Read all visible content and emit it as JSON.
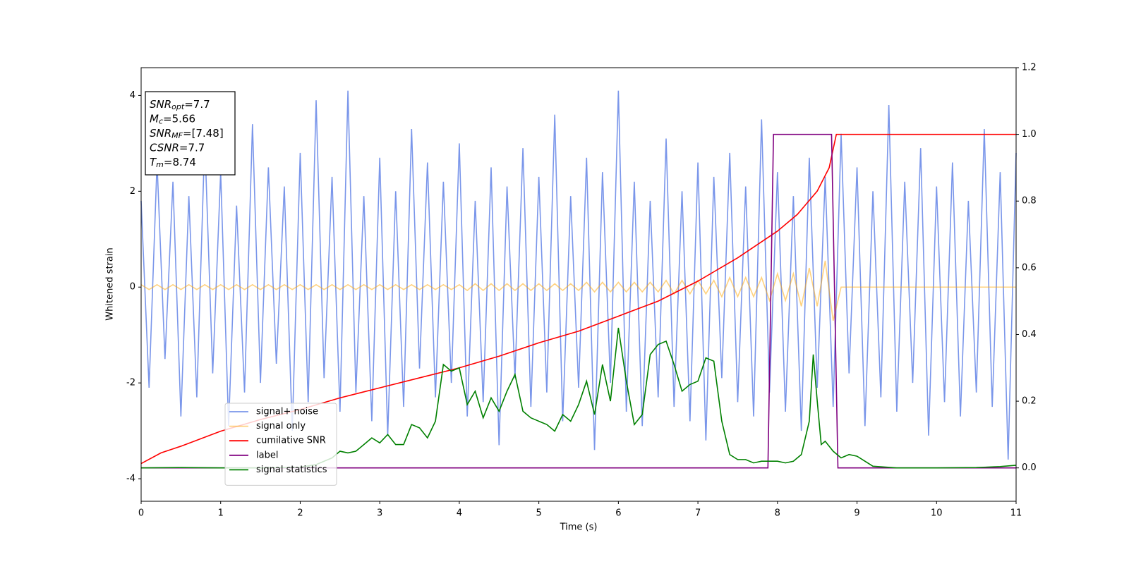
{
  "chart_data": {
    "type": "line",
    "x_label": "Time (s)",
    "y_label": "Whitened strain",
    "xlim": [
      0,
      11
    ],
    "ylim": [
      -4.47,
      4.58
    ],
    "y2lim": [
      -0.1,
      1.2
    ],
    "xticks": [
      0,
      1,
      2,
      3,
      4,
      5,
      6,
      7,
      8,
      9,
      10,
      11
    ],
    "yticks": [
      -4,
      -2,
      0,
      2,
      4
    ],
    "y2ticks": [
      {
        "value": 0,
        "label": "0.0"
      },
      0.2,
      0.4,
      0.6,
      0.8,
      {
        "value": 1,
        "label": "1.0"
      },
      1.2
    ],
    "annotation_lines": [
      {
        "main": "SNR",
        "sub": "opt",
        "rest": "=7.7"
      },
      {
        "main": "M",
        "sub": "c",
        "rest": "=5.66"
      },
      {
        "main": "SNR",
        "sub": "MF",
        "rest": "=[7.48]"
      },
      {
        "main": "CSNR",
        "rest": "=7.7"
      },
      {
        "main": "T",
        "sub": "m",
        "rest": "=8.74"
      }
    ],
    "x": [
      0,
      0.1,
      0.2,
      0.3,
      0.4,
      0.5,
      0.6,
      0.7,
      0.8,
      0.9,
      1,
      1.1,
      1.2,
      1.3,
      1.4,
      1.5,
      1.6,
      1.7,
      1.8,
      1.9,
      2,
      2.1,
      2.2,
      2.3,
      2.4,
      2.5,
      2.6,
      2.7,
      2.8,
      2.9,
      3,
      3.1,
      3.2,
      3.3,
      3.4,
      3.5,
      3.6,
      3.7,
      3.8,
      3.9,
      4,
      4.1,
      4.2,
      4.3,
      4.4,
      4.5,
      4.6,
      4.7,
      4.8,
      4.9,
      5,
      5.1,
      5.2,
      5.3,
      5.4,
      5.5,
      5.6,
      5.7,
      5.8,
      5.9,
      6,
      6.1,
      6.2,
      6.3,
      6.4,
      6.5,
      6.6,
      6.7,
      6.8,
      6.9,
      7,
      7.1,
      7.2,
      7.3,
      7.4,
      7.5,
      7.6,
      7.7,
      7.8,
      7.9,
      8,
      8.1,
      8.2,
      8.3,
      8.4,
      8.5,
      8.6,
      8.7,
      8.8,
      8.9,
      9,
      9.1,
      9.2,
      9.3,
      9.4,
      9.5,
      9.6,
      9.7,
      9.8,
      9.9,
      10,
      10.1,
      10.2,
      10.3,
      10.4,
      10.5,
      10.6,
      10.7,
      10.8,
      10.9,
      11
    ],
    "series": [
      {
        "name": "signal+ noise",
        "color": "royalblue",
        "alpha": 0.7,
        "values": [
          1.8,
          -2.1,
          2.6,
          -1.5,
          2.2,
          -2.7,
          1.9,
          -2.3,
          3.1,
          -1.8,
          2.4,
          -2.9,
          1.7,
          -2.2,
          3.4,
          -2.0,
          2.5,
          -1.6,
          2.1,
          -3.0,
          2.8,
          -2.4,
          3.9,
          -1.9,
          2.3,
          -2.6,
          4.1,
          -2.2,
          1.9,
          -2.8,
          2.7,
          -3.1,
          2.0,
          -2.5,
          3.3,
          -1.7,
          2.6,
          -2.3,
          2.2,
          -2.0,
          3.0,
          -2.7,
          1.8,
          -2.4,
          2.5,
          -3.3,
          2.1,
          -1.9,
          2.9,
          -2.5,
          2.3,
          -2.2,
          3.6,
          -2.8,
          1.9,
          -2.1,
          2.7,
          -3.4,
          2.4,
          -2.0,
          4.1,
          -2.6,
          2.2,
          -2.9,
          1.8,
          -2.3,
          3.1,
          -2.5,
          2.0,
          -2.8,
          2.6,
          -3.2,
          2.3,
          -1.9,
          2.8,
          -2.4,
          2.1,
          -2.7,
          3.5,
          -2.2,
          2.4,
          -2.6,
          1.9,
          -3.0,
          2.7,
          -2.1,
          2.3,
          -2.5,
          3.2,
          -1.8,
          2.5,
          -2.9,
          2.0,
          -2.3,
          3.8,
          -2.6,
          2.2,
          -2.0,
          2.9,
          -3.1,
          2.1,
          -2.4,
          2.6,
          -2.7,
          1.8,
          -2.2,
          3.3,
          -2.5,
          2.4,
          -3.6,
          2.8
        ]
      },
      {
        "name": "signal only",
        "color": "orange",
        "alpha": 0.5,
        "values": [
          0.05,
          -0.05,
          0.05,
          -0.05,
          0.05,
          -0.05,
          0.05,
          -0.05,
          0.05,
          -0.05,
          0.05,
          -0.05,
          0.05,
          -0.05,
          0.05,
          -0.05,
          0.05,
          -0.05,
          0.05,
          -0.05,
          0.05,
          -0.05,
          0.05,
          -0.05,
          0.05,
          -0.05,
          0.05,
          -0.05,
          0.05,
          -0.05,
          0.05,
          -0.05,
          0.05,
          -0.05,
          0.05,
          -0.05,
          0.05,
          -0.05,
          0.05,
          -0.05,
          0.05,
          -0.07,
          0.07,
          -0.07,
          0.07,
          -0.07,
          0.07,
          -0.07,
          0.07,
          -0.07,
          0.07,
          -0.07,
          0.07,
          -0.07,
          0.07,
          -0.07,
          0.1,
          -0.1,
          0.1,
          -0.1,
          0.1,
          -0.1,
          0.1,
          -0.1,
          0.1,
          -0.1,
          0.14,
          -0.14,
          0.14,
          -0.14,
          0.14,
          -0.14,
          0.14,
          -0.2,
          0.2,
          -0.2,
          0.2,
          -0.2,
          0.2,
          -0.28,
          0.28,
          -0.28,
          0.28,
          -0.4,
          0.4,
          -0.4,
          0.55,
          -0.7,
          0,
          0,
          0,
          0,
          0,
          0,
          0,
          0,
          0,
          0,
          0,
          0,
          0,
          0,
          0,
          0,
          0,
          0,
          0,
          0,
          0,
          0,
          0
        ]
      },
      {
        "name": "cumilative SNR",
        "color": "red",
        "alpha": 1,
        "axis": "y2",
        "x": [
          0,
          0.25,
          0.5,
          1,
          1.5,
          2,
          2.5,
          3,
          3.5,
          4,
          4.5,
          5,
          5.5,
          6,
          6.5,
          7,
          7.5,
          8,
          8.25,
          8.5,
          8.65,
          8.74,
          11
        ],
        "values": [
          0.013,
          0.045,
          0.065,
          0.11,
          0.145,
          0.175,
          0.21,
          0.24,
          0.27,
          0.3,
          0.335,
          0.375,
          0.41,
          0.455,
          0.5,
          0.56,
          0.63,
          0.71,
          0.76,
          0.83,
          0.9,
          1.0,
          1.0
        ]
      },
      {
        "name": "label",
        "color": "purple",
        "alpha": 1,
        "axis": "y2",
        "x": [
          0,
          7.88,
          7.95,
          8.68,
          8.76,
          11
        ],
        "values": [
          0,
          0,
          1,
          1,
          0,
          0
        ]
      },
      {
        "name": "signal statistics",
        "color": "green",
        "alpha": 1,
        "axis": "y2",
        "x": [
          0,
          0.5,
          1,
          1.5,
          2,
          2.2,
          2.4,
          2.5,
          2.6,
          2.7,
          2.8,
          2.9,
          3.0,
          3.1,
          3.2,
          3.3,
          3.4,
          3.5,
          3.6,
          3.7,
          3.8,
          3.9,
          4.0,
          4.1,
          4.2,
          4.3,
          4.4,
          4.5,
          4.6,
          4.7,
          4.8,
          4.9,
          5.0,
          5.1,
          5.2,
          5.3,
          5.4,
          5.5,
          5.6,
          5.7,
          5.8,
          5.9,
          6.0,
          6.1,
          6.2,
          6.3,
          6.4,
          6.5,
          6.6,
          6.7,
          6.8,
          6.9,
          7.0,
          7.1,
          7.2,
          7.3,
          7.4,
          7.5,
          7.6,
          7.7,
          7.8,
          7.9,
          8.0,
          8.1,
          8.2,
          8.3,
          8.4,
          8.45,
          8.5,
          8.55,
          8.6,
          8.7,
          8.8,
          8.9,
          9.0,
          9.1,
          9.2,
          9.5,
          10,
          10.5,
          10.8,
          11
        ],
        "values": [
          0.0,
          0.001,
          0.0,
          0.0,
          0.002,
          0.01,
          0.03,
          0.05,
          0.045,
          0.05,
          0.07,
          0.09,
          0.075,
          0.1,
          0.07,
          0.07,
          0.13,
          0.12,
          0.09,
          0.14,
          0.31,
          0.29,
          0.3,
          0.19,
          0.23,
          0.15,
          0.21,
          0.17,
          0.23,
          0.28,
          0.17,
          0.15,
          0.14,
          0.13,
          0.11,
          0.16,
          0.14,
          0.19,
          0.26,
          0.16,
          0.31,
          0.2,
          0.42,
          0.26,
          0.13,
          0.16,
          0.34,
          0.37,
          0.38,
          0.31,
          0.23,
          0.25,
          0.26,
          0.33,
          0.32,
          0.14,
          0.04,
          0.025,
          0.025,
          0.015,
          0.02,
          0.02,
          0.02,
          0.015,
          0.02,
          0.04,
          0.14,
          0.34,
          0.2,
          0.07,
          0.08,
          0.05,
          0.03,
          0.04,
          0.035,
          0.02,
          0.005,
          0.0,
          0.0,
          0.001,
          0.004,
          0.008
        ]
      }
    ]
  }
}
